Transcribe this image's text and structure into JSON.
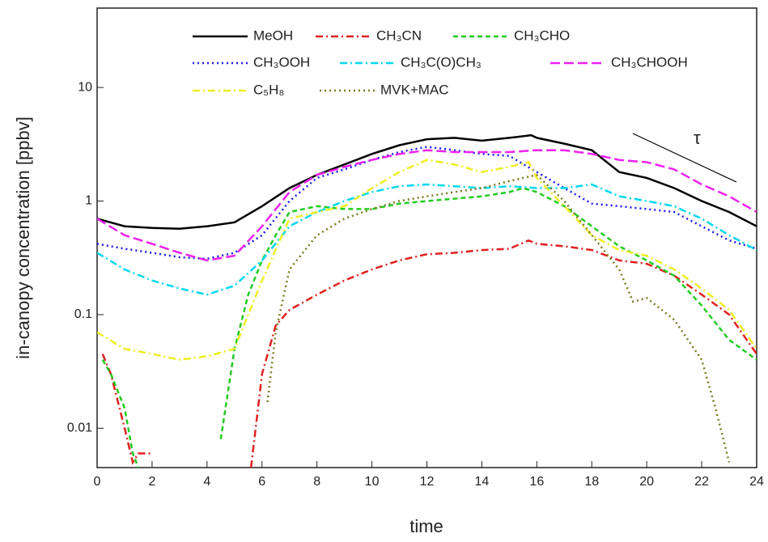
{
  "chart_data": {
    "type": "line",
    "xlabel": "time",
    "ylabel": "in-canopy concentration [ppbv]",
    "annotation": "τ",
    "yscale": "log",
    "xlim": [
      0,
      24
    ],
    "ylim": [
      0.0045,
      50
    ],
    "xticks": [
      0,
      2,
      4,
      6,
      8,
      10,
      12,
      14,
      16,
      18,
      20,
      22,
      24
    ],
    "yticks": [
      0.01,
      0.1,
      1,
      10
    ],
    "series": [
      {
        "name": "MeOH",
        "color": "#000000",
        "dash": "solid",
        "x": [
          0,
          1,
          2,
          3,
          4,
          5,
          6,
          7,
          8,
          9,
          10,
          11,
          12,
          13,
          14,
          15,
          15.8,
          16,
          17,
          18,
          19,
          20,
          21,
          22,
          23,
          24
        ],
        "values": [
          0.7,
          0.6,
          0.58,
          0.57,
          0.6,
          0.65,
          0.9,
          1.3,
          1.7,
          2.1,
          2.6,
          3.1,
          3.5,
          3.6,
          3.4,
          3.6,
          3.8,
          3.6,
          3.2,
          2.8,
          1.8,
          1.6,
          1.3,
          1.0,
          0.8,
          0.6
        ]
      },
      {
        "name": "CH₃CN",
        "color": "#e02020",
        "dash": "dashdot",
        "x": [
          0.2,
          0.5,
          1,
          1.3,
          1.5,
          2,
          3,
          5.6,
          6,
          6.5,
          7,
          8,
          9,
          10,
          11,
          12,
          13,
          14,
          15,
          15.7,
          16,
          17,
          18,
          19,
          20,
          21,
          22,
          23,
          24
        ],
        "values": [
          0.045,
          0.03,
          0.01,
          0.005,
          0.006,
          0.006,
          null,
          0.0045,
          0.03,
          0.08,
          0.11,
          0.15,
          0.2,
          0.25,
          0.3,
          0.34,
          0.35,
          0.37,
          0.38,
          0.45,
          0.42,
          0.4,
          0.37,
          0.3,
          0.28,
          0.22,
          0.15,
          0.1,
          0.045
        ]
      },
      {
        "name": "CH₃CHO",
        "color": "#22cc22",
        "dash": "dash",
        "x": [
          0.2,
          0.5,
          1,
          1.3,
          1.5,
          3,
          4.5,
          5,
          5.5,
          6,
          6.5,
          7,
          8,
          9,
          10,
          11,
          12,
          13,
          14,
          15,
          15.5,
          16,
          17,
          18,
          19,
          20,
          21,
          22,
          23,
          24
        ],
        "values": [
          0.04,
          0.03,
          0.015,
          0.006,
          0.0045,
          null,
          0.008,
          0.05,
          0.15,
          0.3,
          0.5,
          0.8,
          0.9,
          0.85,
          0.85,
          0.95,
          1.0,
          1.05,
          1.1,
          1.2,
          1.3,
          1.2,
          0.9,
          0.6,
          0.4,
          0.3,
          0.22,
          0.12,
          0.06,
          0.04
        ]
      },
      {
        "name": "CH₃OOH",
        "color": "#1a1aee",
        "dash": "dot",
        "x": [
          0,
          1,
          2,
          3,
          4,
          5,
          6,
          7,
          8,
          9,
          10,
          11,
          12,
          13,
          14,
          15,
          16,
          17,
          18,
          19,
          20,
          21,
          22,
          23,
          24
        ],
        "values": [
          0.42,
          0.38,
          0.35,
          0.32,
          0.31,
          0.35,
          0.5,
          1.0,
          1.6,
          1.9,
          2.3,
          2.7,
          3.0,
          2.8,
          2.6,
          2.5,
          1.8,
          1.3,
          0.95,
          0.9,
          0.85,
          0.8,
          0.6,
          0.45,
          0.38
        ]
      },
      {
        "name": "CH₃C(O)CH₃",
        "color": "#00d8ee",
        "dash": "dashdot",
        "x": [
          0,
          1,
          2,
          3,
          4,
          5,
          6,
          7,
          8,
          9,
          10,
          11,
          12,
          13,
          14,
          15,
          16,
          17,
          18,
          19,
          20,
          21,
          22,
          23,
          24
        ],
        "values": [
          0.35,
          0.25,
          0.2,
          0.17,
          0.15,
          0.18,
          0.3,
          0.6,
          0.8,
          1.0,
          1.2,
          1.35,
          1.4,
          1.35,
          1.3,
          1.35,
          1.3,
          1.3,
          1.4,
          1.1,
          1.0,
          0.9,
          0.7,
          0.5,
          0.37
        ]
      },
      {
        "name": "CH₃CHOOH",
        "color": "#ee22ee",
        "dash": "longdash",
        "x": [
          0,
          1,
          2,
          3,
          4,
          5,
          6,
          7,
          8,
          9,
          10,
          11,
          12,
          13,
          14,
          15,
          16,
          17,
          18,
          19,
          20,
          21,
          22,
          23,
          24
        ],
        "values": [
          0.7,
          0.5,
          0.42,
          0.35,
          0.3,
          0.33,
          0.6,
          1.2,
          1.7,
          2.0,
          2.3,
          2.6,
          2.8,
          2.7,
          2.7,
          2.7,
          2.8,
          2.8,
          2.6,
          2.3,
          2.2,
          1.9,
          1.4,
          1.1,
          0.8
        ]
      },
      {
        "name": "C₅H₈",
        "color": "#eeee22",
        "dash": "dashdot",
        "x": [
          0,
          1,
          2,
          3,
          4,
          5,
          6,
          7,
          8,
          9,
          10,
          11,
          12,
          13,
          14,
          15,
          15.7,
          16,
          17,
          18,
          19,
          20,
          21,
          22,
          23,
          24
        ],
        "values": [
          0.07,
          0.05,
          0.045,
          0.04,
          0.043,
          0.05,
          0.2,
          0.7,
          0.8,
          0.9,
          1.3,
          1.8,
          2.3,
          2.1,
          1.8,
          2.0,
          2.2,
          1.6,
          0.9,
          0.5,
          0.37,
          0.33,
          0.25,
          0.17,
          0.11,
          0.05
        ]
      },
      {
        "name": "MVK+MAC",
        "color": "#7a7a20",
        "dash": "dot",
        "x": [
          6.2,
          6.5,
          7,
          8,
          9,
          10,
          11,
          12,
          13,
          14,
          15,
          16,
          17,
          18,
          19,
          19.5,
          20,
          21,
          22,
          22.5,
          23
        ],
        "values": [
          0.017,
          0.07,
          0.25,
          0.5,
          0.7,
          0.85,
          1.0,
          1.1,
          1.2,
          1.3,
          1.5,
          1.7,
          1.0,
          0.5,
          0.25,
          0.13,
          0.14,
          0.09,
          0.04,
          0.015,
          0.005
        ]
      }
    ]
  }
}
